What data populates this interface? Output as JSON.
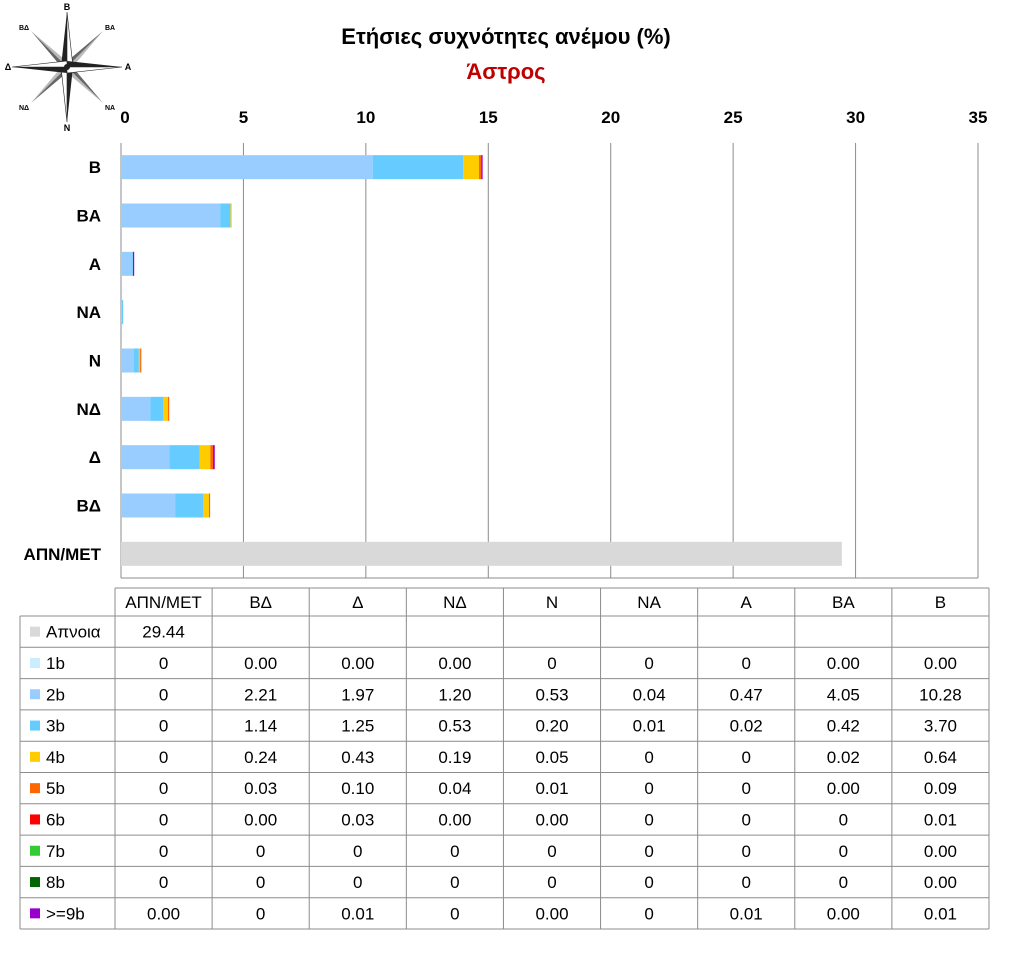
{
  "chart_data": {
    "type": "bar",
    "orientation": "horizontal",
    "stacked": true,
    "title": "Ετήσιες συχνότητες ανέμου (%)",
    "subtitle": "Άστρος",
    "subtitle_color": "#C00000",
    "categories": [
      "ΑΠΝ/ΜΕΤ",
      "ΒΔ",
      "Δ",
      "ΝΔ",
      "Ν",
      "ΝΑ",
      "Α",
      "ΒΑ",
      "Β"
    ],
    "category_order_top_to_bottom": [
      "Β",
      "ΒΑ",
      "Α",
      "ΝΑ",
      "Ν",
      "ΝΔ",
      "Δ",
      "ΒΔ",
      "ΑΠΝ/ΜΕΤ"
    ],
    "xlim": [
      0,
      35
    ],
    "xticks": [
      0,
      5,
      10,
      15,
      20,
      25,
      30,
      35
    ],
    "xaxis_position": "top",
    "grid": true,
    "series": [
      {
        "name": "Απνοια",
        "color": "#D9D9D9",
        "values": [
          "29.44",
          "",
          "",
          "",
          "",
          "",
          "",
          "",
          ""
        ]
      },
      {
        "name": "1b",
        "color": "#CCECFF",
        "values": [
          "0",
          "0.00",
          "0.00",
          "0.00",
          "0",
          "0",
          "0",
          "0.00",
          "0.00"
        ]
      },
      {
        "name": "2b",
        "color": "#99CCFF",
        "values": [
          "0",
          "2.21",
          "1.97",
          "1.20",
          "0.53",
          "0.04",
          "0.47",
          "4.05",
          "10.28"
        ]
      },
      {
        "name": "3b",
        "color": "#66CCFF",
        "values": [
          "0",
          "1.14",
          "1.25",
          "0.53",
          "0.20",
          "0.01",
          "0.02",
          "0.42",
          "3.70"
        ]
      },
      {
        "name": "4b",
        "color": "#FFCC00",
        "values": [
          "0",
          "0.24",
          "0.43",
          "0.19",
          "0.05",
          "0",
          "0",
          "0.02",
          "0.64"
        ]
      },
      {
        "name": "5b",
        "color": "#FF6600",
        "values": [
          "0",
          "0.03",
          "0.10",
          "0.04",
          "0.01",
          "0",
          "0",
          "0.00",
          "0.09"
        ]
      },
      {
        "name": "6b",
        "color": "#FF0000",
        "values": [
          "0",
          "0.00",
          "0.03",
          "0.00",
          "0.00",
          "0",
          "0",
          "0",
          "0.01"
        ]
      },
      {
        "name": "7b",
        "color": "#33CC33",
        "values": [
          "0",
          "0",
          "0",
          "0",
          "0",
          "0",
          "0",
          "0",
          "0.00"
        ]
      },
      {
        "name": "8b",
        "color": "#006600",
        "values": [
          "0",
          "0",
          "0",
          "0",
          "0",
          "0",
          "0",
          "0",
          "0.00"
        ]
      },
      {
        "name": ">=9b",
        "color": "#9900CC",
        "values": [
          "0.00",
          "0",
          "0.01",
          "0",
          "0.00",
          "0",
          "0.01",
          "0.00",
          "0.01"
        ]
      }
    ]
  },
  "compass": {
    "labels": {
      "n": "Β",
      "ne": "ΒΑ",
      "e": "Α",
      "se": "ΝΑ",
      "s": "Ν",
      "sw": "ΝΔ",
      "w": "Δ",
      "nw": "ΒΔ"
    }
  }
}
